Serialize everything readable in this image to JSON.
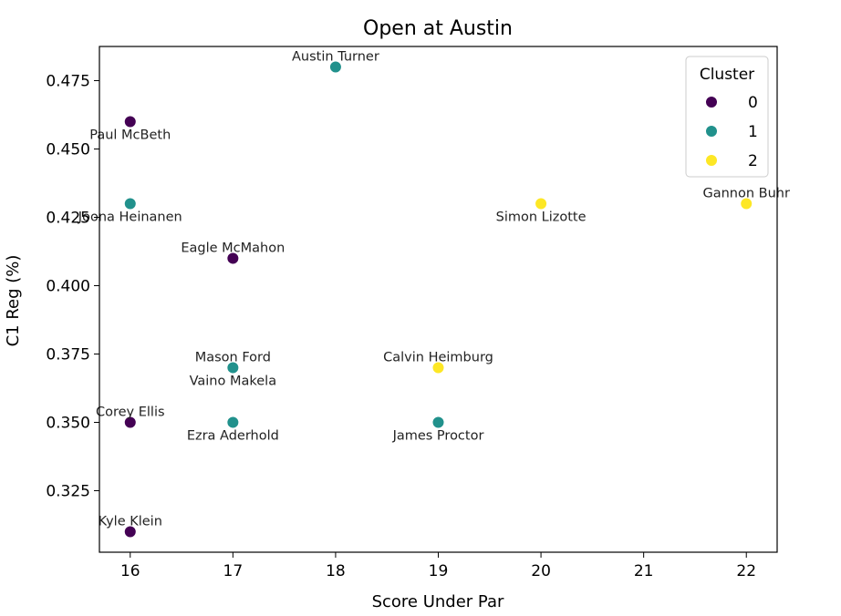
{
  "chart_data": {
    "type": "scatter",
    "title": "Open at Austin",
    "xlabel": "Score Under Par",
    "ylabel": "C1 Reg (%)",
    "xlim": [
      15.7,
      22.3
    ],
    "ylim": [
      0.3025,
      0.4875
    ],
    "x_ticks": [
      "16",
      "17",
      "18",
      "19",
      "20",
      "21",
      "22"
    ],
    "y_ticks": [
      "0.325",
      "0.350",
      "0.375",
      "0.400",
      "0.425",
      "0.450",
      "0.475"
    ],
    "grid": false,
    "legend": {
      "title": "Cluster",
      "placement": "top-right",
      "entries": [
        {
          "label": "0",
          "color": "#440154"
        },
        {
          "label": "1",
          "color": "#21918c"
        },
        {
          "label": "2",
          "color": "#fde725"
        }
      ]
    },
    "points": [
      {
        "name": "Austin Turner",
        "x": 18,
        "y": 0.48,
        "cluster": 1,
        "label_pos": "above"
      },
      {
        "name": "Paul McBeth",
        "x": 16,
        "y": 0.46,
        "cluster": 0,
        "label_pos": "below"
      },
      {
        "name": "Joona Heinanen",
        "x": 16,
        "y": 0.43,
        "cluster": 1,
        "label_pos": "below"
      },
      {
        "name": "Simon Lizotte",
        "x": 20,
        "y": 0.43,
        "cluster": 2,
        "label_pos": "below"
      },
      {
        "name": "Gannon Buhr",
        "x": 22,
        "y": 0.43,
        "cluster": 2,
        "label_pos": "above"
      },
      {
        "name": "Eagle McMahon",
        "x": 17,
        "y": 0.41,
        "cluster": 0,
        "label_pos": "above"
      },
      {
        "name": "Mason Ford",
        "x": 17,
        "y": 0.37,
        "cluster": 1,
        "label_pos": "above"
      },
      {
        "name": "Vaino Makela",
        "x": 17,
        "y": 0.37,
        "cluster": 1,
        "label_pos": "below"
      },
      {
        "name": "Calvin Heimburg",
        "x": 19,
        "y": 0.37,
        "cluster": 2,
        "label_pos": "above"
      },
      {
        "name": "Corey Ellis",
        "x": 16,
        "y": 0.35,
        "cluster": 0,
        "label_pos": "above"
      },
      {
        "name": "Ezra Aderhold",
        "x": 17,
        "y": 0.35,
        "cluster": 1,
        "label_pos": "below"
      },
      {
        "name": "James Proctor",
        "x": 19,
        "y": 0.35,
        "cluster": 1,
        "label_pos": "below"
      },
      {
        "name": "Kyle Klein",
        "x": 16,
        "y": 0.31,
        "cluster": 0,
        "label_pos": "above"
      }
    ]
  }
}
